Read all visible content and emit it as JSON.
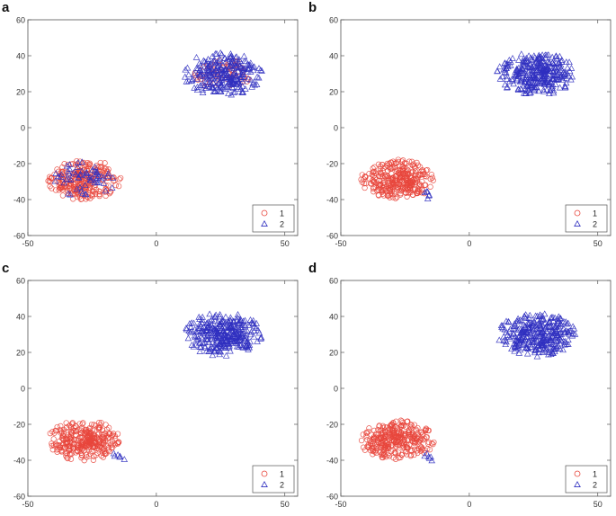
{
  "figure_title": "",
  "chart_data": [
    {
      "panel_label": "a",
      "type": "scatter",
      "title": "",
      "xlabel": "",
      "ylabel": "",
      "xlim": [
        -50,
        55
      ],
      "ylim": [
        -60,
        60
      ],
      "xticks": [
        -50,
        0,
        50
      ],
      "yticks": [
        -60,
        -40,
        -20,
        0,
        20,
        40,
        60
      ],
      "legend": {
        "position": "bottom-right",
        "entries": [
          "1",
          "2"
        ]
      },
      "series": [
        {
          "name": "1",
          "marker": "circle",
          "color": "#e8463c",
          "cluster": "lower-left",
          "center": [
            -28,
            -29
          ],
          "spread": [
            14,
            11
          ],
          "count": 260
        },
        {
          "name": "1",
          "marker": "circle",
          "color": "#e8463c",
          "cluster": "upper-right",
          "center": [
            26,
            30
          ],
          "spread": [
            11,
            9
          ],
          "count": 70
        },
        {
          "name": "2",
          "marker": "triangle",
          "color": "#3030c0",
          "cluster": "upper-right",
          "center": [
            26,
            30
          ],
          "spread": [
            15,
            12
          ],
          "count": 260
        },
        {
          "name": "2",
          "marker": "triangle",
          "color": "#3030c0",
          "cluster": "lower-left",
          "center": [
            -28,
            -29
          ],
          "spread": [
            12,
            10
          ],
          "count": 60
        }
      ]
    },
    {
      "panel_label": "b",
      "type": "scatter",
      "title": "",
      "xlabel": "",
      "ylabel": "",
      "xlim": [
        -50,
        55
      ],
      "ylim": [
        -60,
        60
      ],
      "xticks": [
        -50,
        0,
        50
      ],
      "yticks": [
        -60,
        -40,
        -20,
        0,
        20,
        40,
        60
      ],
      "legend": {
        "position": "bottom-right",
        "entries": [
          "1",
          "2"
        ]
      },
      "series": [
        {
          "name": "1",
          "marker": "circle",
          "color": "#e8463c",
          "cluster": "lower-left",
          "center": [
            -28,
            -29
          ],
          "spread": [
            14,
            11
          ],
          "count": 320
        },
        {
          "name": "2",
          "marker": "triangle",
          "color": "#3030c0",
          "cluster": "upper-right",
          "center": [
            26,
            30
          ],
          "spread": [
            15,
            12
          ],
          "count": 320
        },
        {
          "name": "2",
          "marker": "triangle",
          "color": "#3030c0",
          "cluster": "lower-left",
          "center": [
            -15,
            -38
          ],
          "spread": [
            3,
            3
          ],
          "count": 6
        }
      ]
    },
    {
      "panel_label": "c",
      "type": "scatter",
      "title": "",
      "xlabel": "",
      "ylabel": "",
      "xlim": [
        -50,
        55
      ],
      "ylim": [
        -60,
        60
      ],
      "xticks": [
        -50,
        0,
        50
      ],
      "yticks": [
        -60,
        -40,
        -20,
        0,
        20,
        40,
        60
      ],
      "legend": {
        "position": "bottom-right",
        "entries": [
          "1",
          "2"
        ]
      },
      "series": [
        {
          "name": "1",
          "marker": "circle",
          "color": "#e8463c",
          "cluster": "lower-left",
          "center": [
            -28,
            -29
          ],
          "spread": [
            14,
            11
          ],
          "count": 320
        },
        {
          "name": "2",
          "marker": "triangle",
          "color": "#3030c0",
          "cluster": "upper-right",
          "center": [
            26,
            30
          ],
          "spread": [
            15,
            12
          ],
          "count": 320
        },
        {
          "name": "2",
          "marker": "triangle",
          "color": "#3030c0",
          "cluster": "lower-left",
          "center": [
            -15,
            -38
          ],
          "spread": [
            3,
            3
          ],
          "count": 6
        }
      ]
    },
    {
      "panel_label": "d",
      "type": "scatter",
      "title": "",
      "xlabel": "",
      "ylabel": "",
      "xlim": [
        -50,
        55
      ],
      "ylim": [
        -60,
        60
      ],
      "xticks": [
        -50,
        0,
        50
      ],
      "yticks": [
        -60,
        -40,
        -20,
        0,
        20,
        40,
        60
      ],
      "legend": {
        "position": "bottom-right",
        "entries": [
          "1",
          "2"
        ]
      },
      "series": [
        {
          "name": "1",
          "marker": "circle",
          "color": "#e8463c",
          "cluster": "lower-left",
          "center": [
            -28,
            -29
          ],
          "spread": [
            14,
            11
          ],
          "count": 320
        },
        {
          "name": "2",
          "marker": "triangle",
          "color": "#3030c0",
          "cluster": "upper-right",
          "center": [
            26,
            30
          ],
          "spread": [
            15,
            12
          ],
          "count": 320
        },
        {
          "name": "2",
          "marker": "triangle",
          "color": "#3030c0",
          "cluster": "lower-left",
          "center": [
            -15,
            -38
          ],
          "spread": [
            3,
            3
          ],
          "count": 6
        }
      ]
    }
  ]
}
